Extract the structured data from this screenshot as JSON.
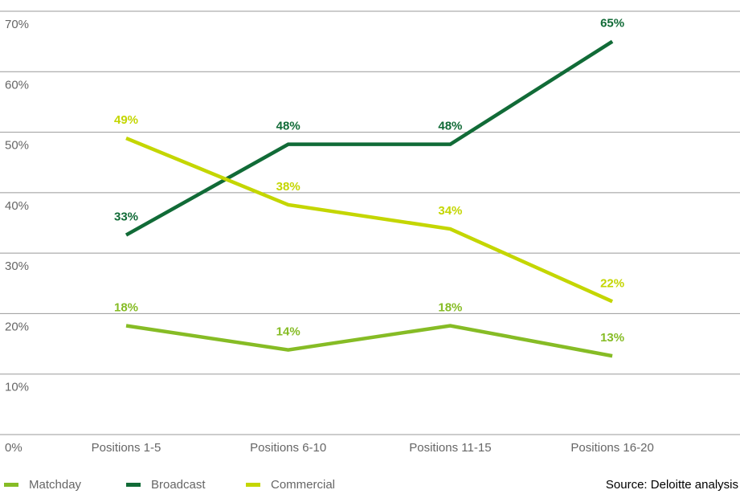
{
  "chart_data": {
    "type": "line",
    "categories": [
      "Positions 1-5",
      "Positions 6-10",
      "Positions 11-15",
      "Positions 16-20"
    ],
    "series": [
      {
        "name": "Matchday",
        "color": "#86bc25",
        "values": [
          18,
          14,
          18,
          13
        ],
        "value_labels": [
          "18%",
          "14%",
          "18%",
          "13%"
        ]
      },
      {
        "name": "Broadcast",
        "color": "#116b37",
        "values": [
          33,
          48,
          48,
          65
        ],
        "value_labels": [
          "33%",
          "48%",
          "48%",
          "65%"
        ]
      },
      {
        "name": "Commercial",
        "color": "#c4d600",
        "values": [
          49,
          38,
          34,
          22
        ],
        "value_labels": [
          "49%",
          "38%",
          "34%",
          "22%"
        ]
      }
    ],
    "ylim": [
      0,
      70
    ],
    "yticks": [
      {
        "value": 0,
        "label": "0%"
      },
      {
        "value": 10,
        "label": "10%"
      },
      {
        "value": 20,
        "label": "20%"
      },
      {
        "value": 30,
        "label": "30%"
      },
      {
        "value": 40,
        "label": "40%"
      },
      {
        "value": 50,
        "label": "50%"
      },
      {
        "value": 60,
        "label": "60%"
      },
      {
        "value": 70,
        "label": "70%"
      }
    ],
    "grid": true,
    "legend": "bottom",
    "source": "Source: Deloitte analysis"
  }
}
